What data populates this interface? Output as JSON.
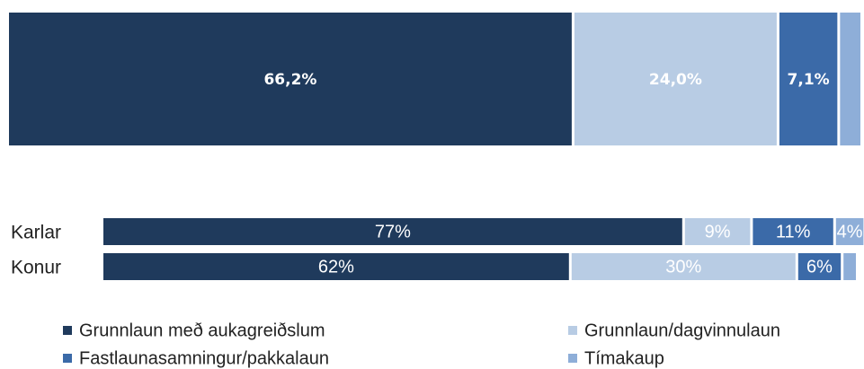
{
  "chart_data": [
    {
      "type": "bar",
      "orientation": "horizontal",
      "stacked": true,
      "xlim": [
        0,
        100
      ],
      "series": [
        {
          "color": "#1f3a5c",
          "values": [
            66.2
          ],
          "value_labels": [
            "66,2%"
          ]
        },
        {
          "color": "#b8cce4",
          "values": [
            24.0
          ],
          "value_labels": [
            "24,0%"
          ]
        },
        {
          "color": "#3b6aa8",
          "values": [
            7.1
          ],
          "value_labels": [
            "7,1%"
          ]
        },
        {
          "color": "#8eaed8",
          "values": [
            2.7
          ],
          "value_labels": [
            null
          ]
        }
      ]
    },
    {
      "type": "bar",
      "orientation": "horizontal",
      "stacked": true,
      "xlim": [
        0,
        100
      ],
      "categories": [
        "Karlar",
        "Konur"
      ],
      "series": [
        {
          "name": "Grunnlaun með aukagreiðslum",
          "color": "#1f3a5c",
          "values": [
            77,
            62
          ],
          "value_labels": [
            "77%",
            "62%"
          ]
        },
        {
          "name": "Grunnlaun/dagvinnulaun",
          "color": "#b8cce4",
          "values": [
            9,
            30
          ],
          "value_labels": [
            "9%",
            "30%"
          ]
        },
        {
          "name": "Fastlaunasamningur/pakkalaun",
          "color": "#3b6aa8",
          "values": [
            11,
            6
          ],
          "value_labels": [
            "11%",
            "6%"
          ]
        },
        {
          "name": "Tímakaup",
          "color": "#8eaed8",
          "values": [
            4,
            2
          ],
          "value_labels": [
            "4%",
            null
          ]
        }
      ],
      "legend": "bottom"
    }
  ]
}
